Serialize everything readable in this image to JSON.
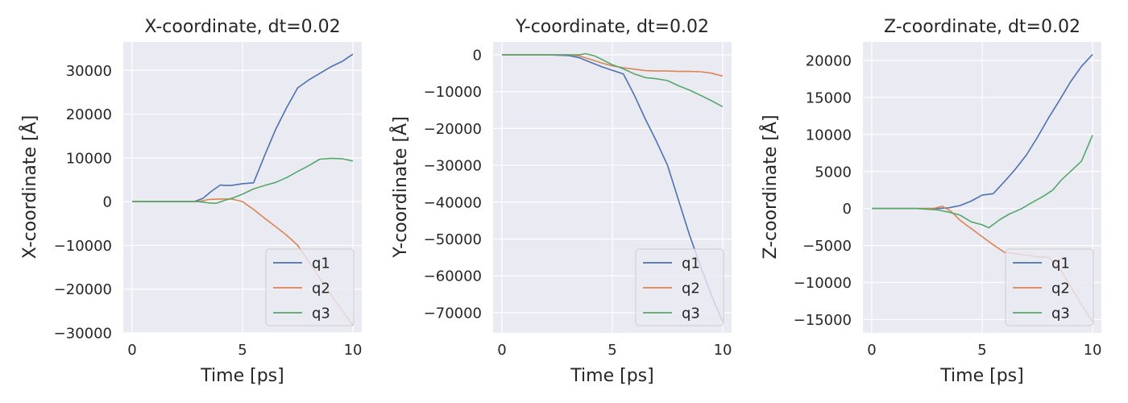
{
  "charts": [
    {
      "title": "X-coordinate, dt=0.02",
      "xlabel": "Time [ps]",
      "ylabel": "X-coordinate [Å]",
      "xticks": [
        0,
        5,
        10
      ],
      "xlim": [
        -0.4,
        10.4
      ],
      "yticks": [
        -30000,
        -20000,
        -10000,
        0,
        10000,
        20000,
        30000
      ],
      "ytick_labels": [
        "−30000",
        "−20000",
        "−10000",
        "0",
        "10000",
        "20000",
        "30000"
      ],
      "ylim": [
        -30000,
        36500
      ],
      "legend": "lower-right"
    },
    {
      "title": "Y-coordinate, dt=0.02",
      "xlabel": "Time [ps]",
      "ylabel": "Y-coordinate [Å]",
      "xticks": [
        0,
        5,
        10
      ],
      "xlim": [
        -0.4,
        10.4
      ],
      "yticks": [
        -70000,
        -60000,
        -50000,
        -40000,
        -30000,
        -20000,
        -10000,
        0
      ],
      "ytick_labels": [
        "−70000",
        "−60000",
        "−50000",
        "−40000",
        "−30000",
        "−20000",
        "−10000",
        "0"
      ],
      "ylim": [
        -75500,
        3500
      ],
      "legend": "lower-right"
    },
    {
      "title": "Z-coordinate, dt=0.02",
      "xlabel": "Time [ps]",
      "ylabel": "Z-coordinate [Å]",
      "xticks": [
        0,
        5,
        10
      ],
      "xlim": [
        -0.4,
        10.4
      ],
      "yticks": [
        -15000,
        -10000,
        -5000,
        0,
        5000,
        10000,
        15000,
        20000
      ],
      "ytick_labels": [
        "−15000",
        "−10000",
        "−5000",
        "0",
        "5000",
        "10000",
        "15000",
        "20000"
      ],
      "ylim": [
        -16800,
        22500
      ],
      "legend": "lower-right"
    }
  ],
  "chart_data": [
    {
      "type": "line",
      "title": "X-coordinate, dt=0.02",
      "xlabel": "Time [ps]",
      "ylabel": "X-coordinate [Å]",
      "xlim": [
        -0.4,
        10.4
      ],
      "ylim": [
        -30000,
        36500
      ],
      "grid": true,
      "legend_position": "lower-right",
      "series": [
        {
          "name": "q1",
          "color": "#4c72b0",
          "x": [
            0,
            1,
            2,
            2.8,
            3.2,
            3.6,
            4.0,
            4.2,
            4.5,
            5.0,
            5.5,
            6.0,
            6.5,
            7.0,
            7.5,
            8.0,
            8.5,
            9.0,
            9.5,
            10.0
          ],
          "y": [
            0,
            0,
            0,
            0,
            700,
            2400,
            3800,
            3700,
            3700,
            4100,
            4300,
            10500,
            16500,
            21500,
            26000,
            27800,
            29300,
            30800,
            32000,
            33700
          ]
        },
        {
          "name": "q2",
          "color": "#dd8452",
          "x": [
            0,
            1,
            2,
            3.0,
            3.5,
            4.0,
            4.5,
            5.0,
            5.5,
            6.0,
            6.5,
            7.0,
            7.5,
            8.0,
            8.5,
            9.0,
            9.5,
            10.0
          ],
          "y": [
            0,
            0,
            0,
            0,
            500,
            600,
            600,
            0,
            -1800,
            -3800,
            -5700,
            -7700,
            -10000,
            -13700,
            -17500,
            -21200,
            -24800,
            -28300
          ]
        },
        {
          "name": "q3",
          "color": "#55a868",
          "x": [
            0,
            1,
            2,
            3.0,
            3.5,
            3.8,
            4.2,
            4.6,
            5.0,
            5.5,
            6.0,
            6.5,
            7.0,
            7.5,
            8.0,
            8.5,
            9.0,
            9.5,
            10.0
          ],
          "y": [
            0,
            0,
            0,
            0,
            -300,
            -400,
            300,
            900,
            1700,
            2900,
            3700,
            4400,
            5500,
            6900,
            8200,
            9700,
            9900,
            9800,
            9300
          ]
        }
      ]
    },
    {
      "type": "line",
      "title": "Y-coordinate, dt=0.02",
      "xlabel": "Time [ps]",
      "ylabel": "Y-coordinate [Å]",
      "xlim": [
        -0.4,
        10.4
      ],
      "ylim": [
        -75500,
        3500
      ],
      "grid": true,
      "legend_position": "lower-right",
      "series": [
        {
          "name": "q1",
          "color": "#4c72b0",
          "x": [
            0,
            1,
            2,
            3.0,
            3.5,
            4.0,
            4.5,
            5.0,
            5.5,
            6.0,
            6.5,
            7.0,
            7.5,
            8.0,
            8.5,
            9.0,
            9.5,
            10.0
          ],
          "y": [
            0,
            0,
            0,
            -200,
            -800,
            -2000,
            -3200,
            -4200,
            -5200,
            -11000,
            -17500,
            -23500,
            -30000,
            -39500,
            -49000,
            -57500,
            -65500,
            -72500
          ]
        },
        {
          "name": "q2",
          "color": "#dd8452",
          "x": [
            0,
            1,
            2,
            3.0,
            3.5,
            4.0,
            4.5,
            5.0,
            5.5,
            6.0,
            6.5,
            7.0,
            7.5,
            8.0,
            8.5,
            9.0,
            9.5,
            10.0
          ],
          "y": [
            0,
            0,
            0,
            0,
            -300,
            -1200,
            -2200,
            -3000,
            -3500,
            -3900,
            -4300,
            -4400,
            -4400,
            -4500,
            -4500,
            -4600,
            -5000,
            -5800
          ]
        },
        {
          "name": "q3",
          "color": "#55a868",
          "x": [
            0,
            1,
            2,
            3.0,
            3.5,
            3.8,
            4.2,
            4.6,
            5.0,
            5.5,
            6.0,
            6.5,
            7.0,
            7.5,
            8.0,
            8.5,
            9.0,
            9.5,
            10.0
          ],
          "y": [
            0,
            0,
            0,
            0,
            0,
            300,
            -300,
            -1500,
            -2700,
            -3800,
            -5200,
            -6200,
            -6500,
            -7000,
            -8400,
            -9600,
            -11000,
            -12500,
            -14100
          ]
        }
      ]
    },
    {
      "type": "line",
      "title": "Z-coordinate, dt=0.02",
      "xlabel": "Time [ps]",
      "ylabel": "Z-coordinate [Å]",
      "xlim": [
        -0.4,
        10.4
      ],
      "ylim": [
        -16800,
        22500
      ],
      "grid": true,
      "legend_position": "lower-right",
      "series": [
        {
          "name": "q1",
          "color": "#4c72b0",
          "x": [
            0,
            1,
            2,
            3.0,
            3.5,
            4.0,
            4.5,
            5.0,
            5.5,
            6.0,
            6.5,
            7.0,
            7.5,
            8.0,
            8.5,
            9.0,
            9.5,
            10.0
          ],
          "y": [
            0,
            0,
            0,
            0,
            100,
            400,
            1000,
            1800,
            2000,
            3600,
            5300,
            7200,
            9600,
            12200,
            14600,
            17100,
            19200,
            20800
          ]
        },
        {
          "name": "q2",
          "color": "#dd8452",
          "x": [
            0,
            1,
            2,
            2.8,
            3.2,
            3.6,
            4.0,
            4.5,
            5.0,
            5.5,
            6.0,
            6.5,
            7.0,
            7.5,
            8.0,
            8.5,
            9.0,
            9.5,
            10.0
          ],
          "y": [
            0,
            0,
            0,
            0,
            300,
            -400,
            -1600,
            -2700,
            -3800,
            -4900,
            -5900,
            -6100,
            -6300,
            -6500,
            -6600,
            -8000,
            -10500,
            -13000,
            -15300
          ]
        },
        {
          "name": "q3",
          "color": "#55a868",
          "x": [
            0,
            1,
            2,
            3.0,
            3.5,
            4.0,
            4.5,
            5.0,
            5.3,
            5.8,
            6.2,
            6.8,
            7.2,
            7.8,
            8.2,
            8.6,
            9.0,
            9.5,
            10.0
          ],
          "y": [
            0,
            0,
            0,
            -200,
            -500,
            -900,
            -1800,
            -2200,
            -2600,
            -1500,
            -800,
            0,
            700,
            1700,
            2500,
            3900,
            5000,
            6400,
            9900
          ]
        }
      ]
    }
  ]
}
